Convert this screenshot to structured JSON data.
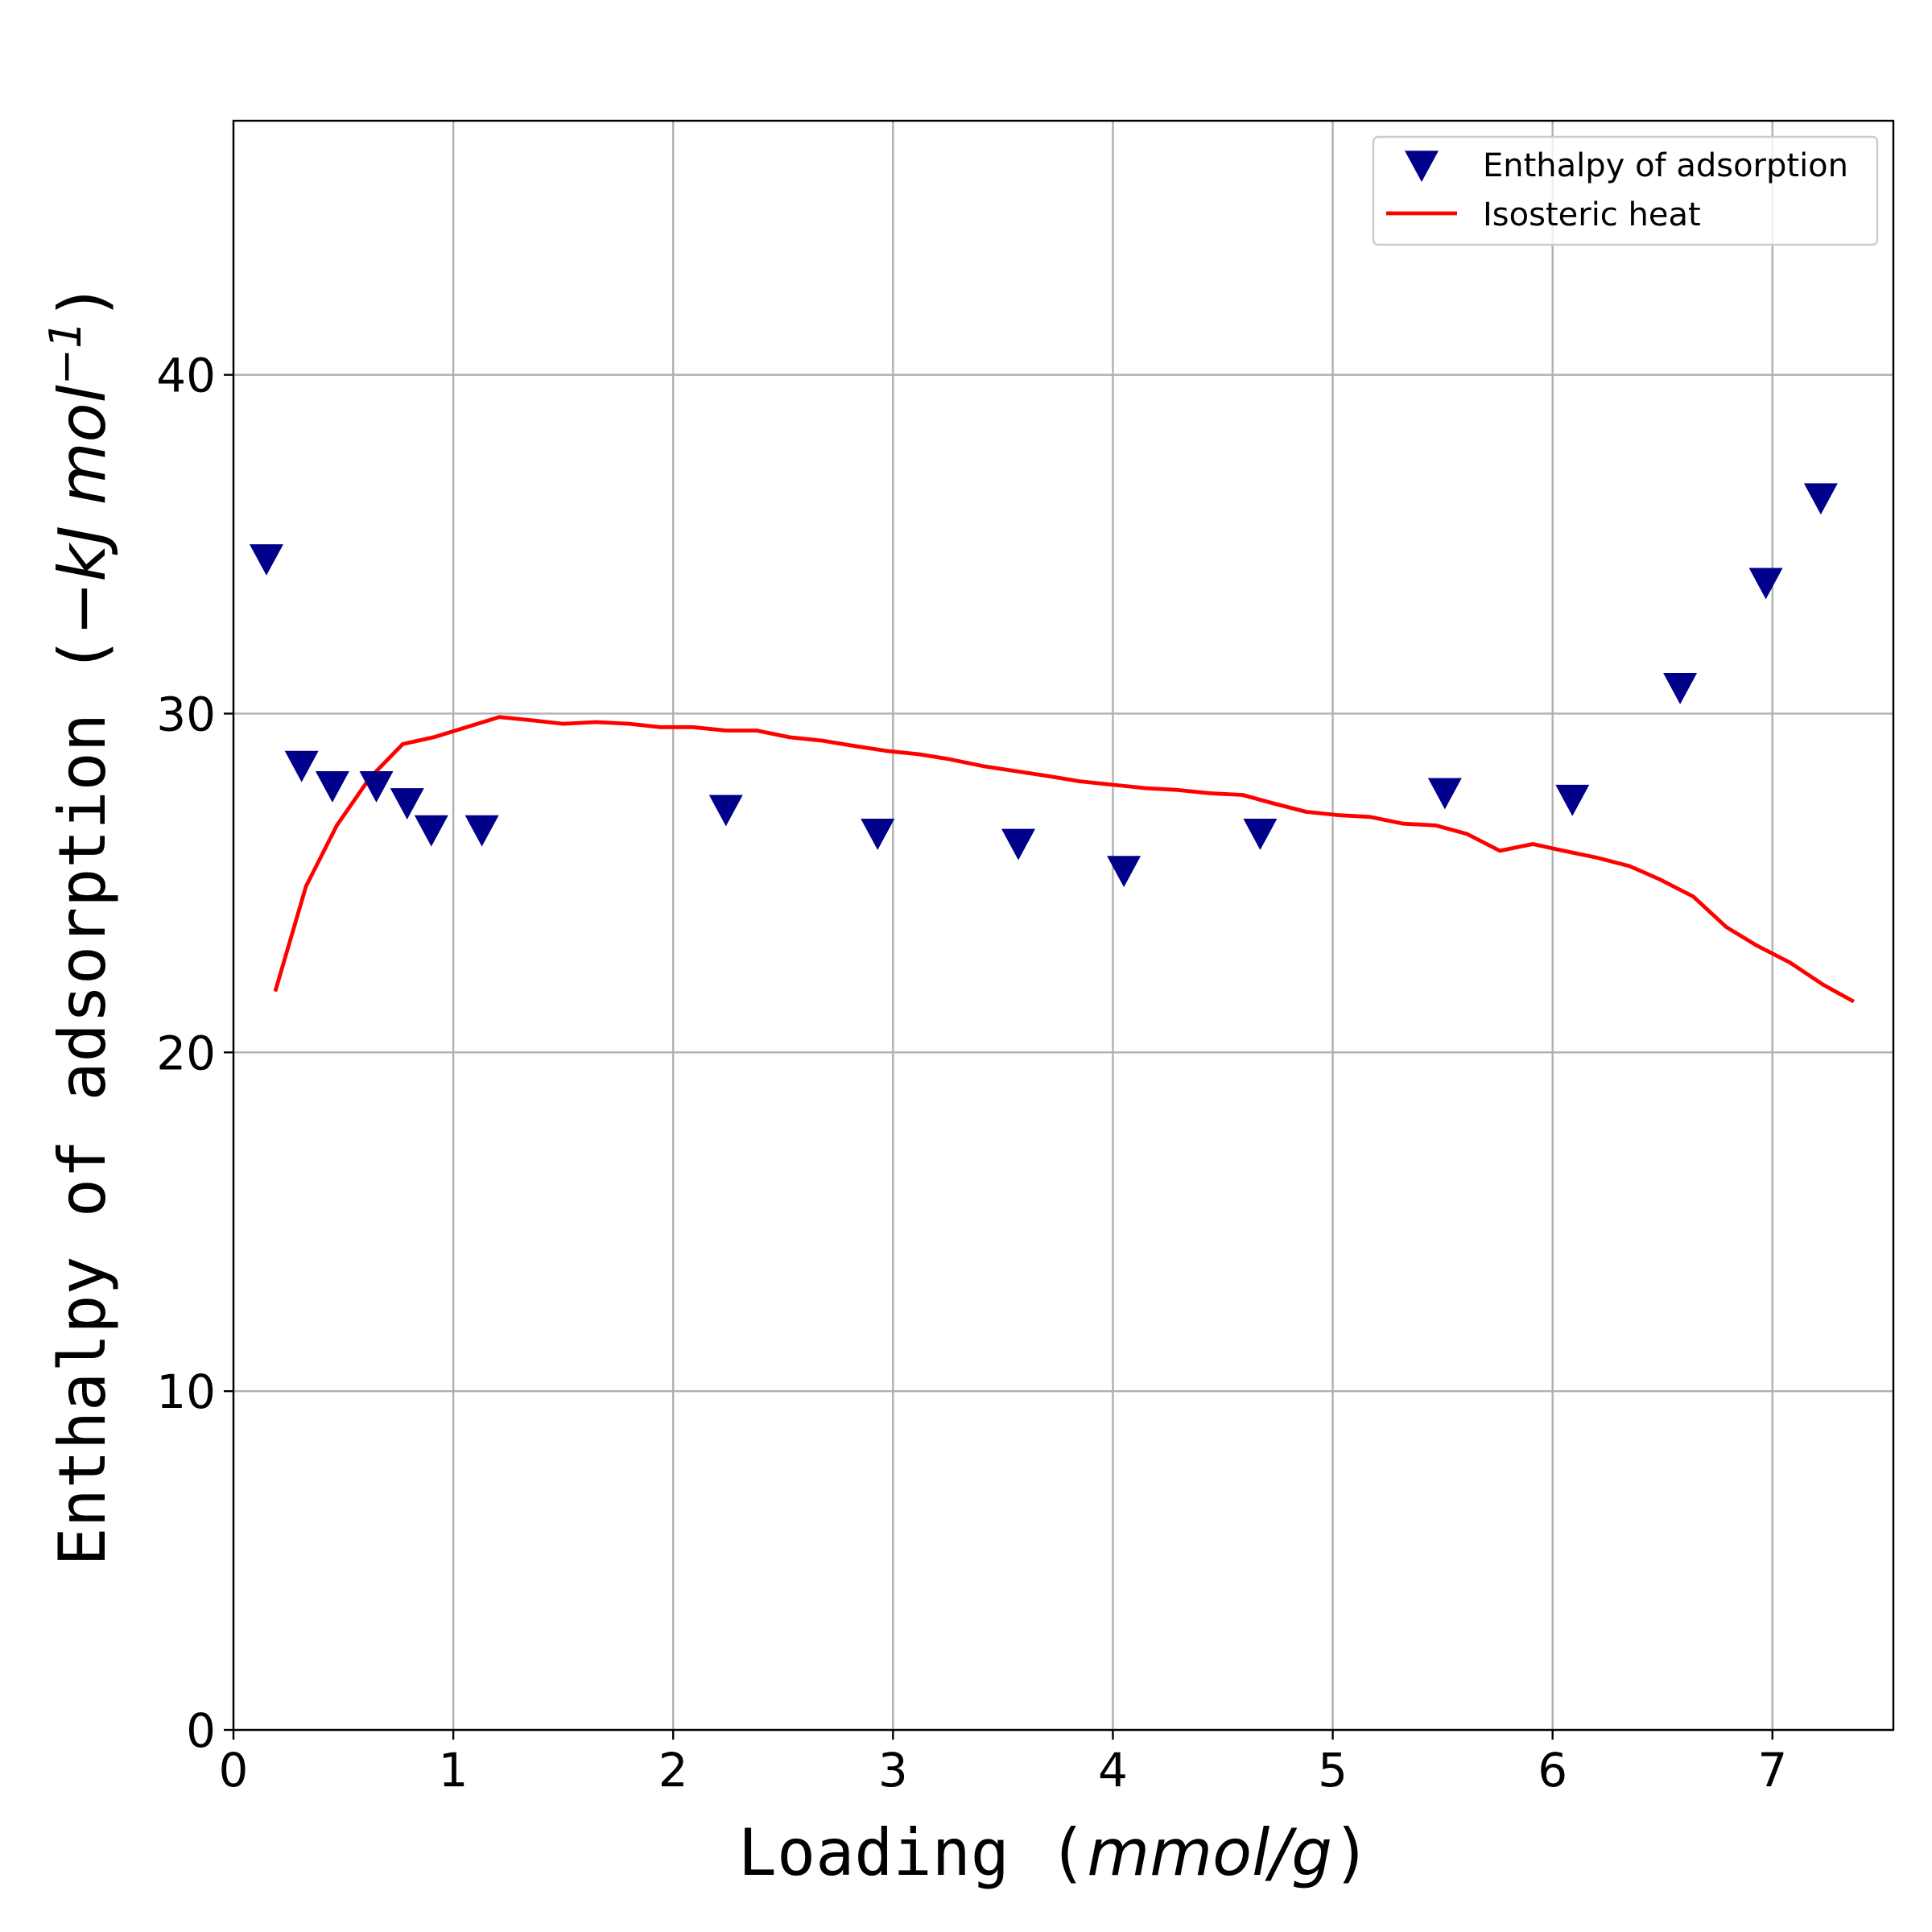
{
  "chart_data": {
    "type": "scatter",
    "xlabel": {
      "text": "Loading (",
      "unit": "mmol/g",
      "close": ")"
    },
    "ylabel": {
      "text": "Enthalpy of adsorption (",
      "unit": "−kJ mol",
      "sup": "−1",
      "close": ")"
    },
    "xlim": [
      0,
      7.55
    ],
    "ylim": [
      0,
      47.5
    ],
    "xticks": [
      0,
      1,
      2,
      3,
      4,
      5,
      6,
      7
    ],
    "yticks": [
      0,
      10,
      20,
      30,
      40
    ],
    "grid": true,
    "legend_position": "top-right",
    "series": [
      {
        "name": "Enthalpy of adsorption",
        "kind": "scatter",
        "marker": "triangle-down",
        "color": "#00008b",
        "x": [
          0.15,
          0.31,
          0.45,
          0.65,
          0.79,
          0.9,
          1.13,
          2.24,
          2.93,
          3.57,
          4.05,
          4.67,
          5.51,
          6.09,
          6.58,
          6.97,
          7.22
        ],
        "y": [
          34.6,
          28.5,
          27.9,
          27.9,
          27.4,
          26.6,
          26.6,
          27.2,
          26.5,
          26.2,
          25.4,
          26.5,
          27.7,
          27.5,
          30.8,
          33.9,
          36.4
        ]
      },
      {
        "name": "Isosteric heat",
        "kind": "line",
        "color": "#ff0000",
        "x": [
          0.19,
          0.33,
          0.47,
          0.62,
          0.77,
          0.91,
          1.06,
          1.21,
          1.36,
          1.5,
          1.65,
          1.8,
          1.94,
          2.09,
          2.24,
          2.38,
          2.53,
          2.68,
          2.82,
          2.97,
          3.12,
          3.26,
          3.41,
          3.56,
          3.71,
          3.85,
          4.0,
          4.15,
          4.29,
          4.44,
          4.59,
          4.73,
          4.88,
          5.03,
          5.17,
          5.32,
          5.47,
          5.61,
          5.76,
          5.91,
          6.05,
          6.2,
          6.35,
          6.49,
          6.64,
          6.79,
          6.93,
          7.08,
          7.23,
          7.37
        ],
        "y": [
          21.8,
          24.9,
          26.7,
          28.1,
          29.1,
          29.3,
          29.6,
          29.9,
          29.8,
          29.7,
          29.75,
          29.7,
          29.6,
          29.6,
          29.5,
          29.5,
          29.3,
          29.2,
          29.05,
          28.9,
          28.8,
          28.65,
          28.45,
          28.3,
          28.15,
          28.0,
          27.9,
          27.8,
          27.75,
          27.65,
          27.6,
          27.35,
          27.1,
          27.0,
          26.95,
          26.75,
          26.7,
          26.45,
          25.95,
          26.15,
          25.95,
          25.75,
          25.5,
          25.1,
          24.6,
          23.7,
          23.15,
          22.65,
          22.0,
          21.5
        ]
      }
    ]
  }
}
